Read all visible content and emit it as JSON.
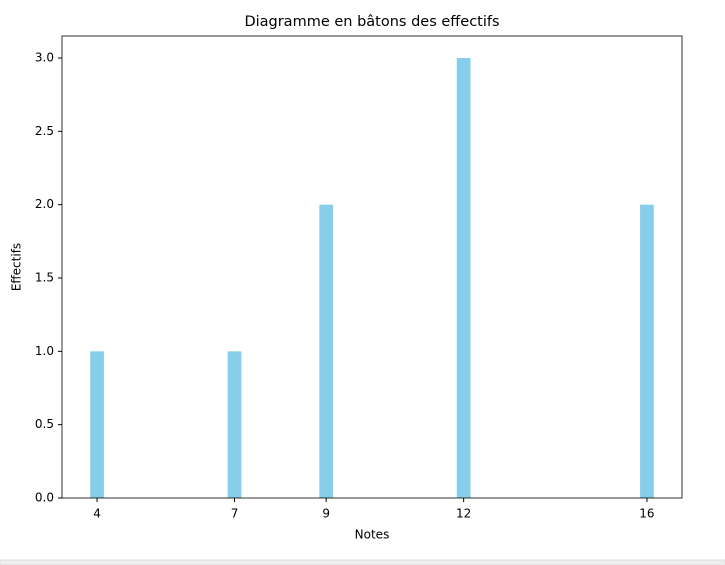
{
  "chart_data": {
    "type": "bar",
    "title": "Diagramme en bâtons des effectifs",
    "x_label": "Notes",
    "y_label": "Effectifs",
    "x": [
      4,
      7,
      9,
      12,
      16
    ],
    "values": [
      1,
      1,
      2,
      3,
      2
    ],
    "color": "#87ceeb",
    "xlim": [
      3.235,
      16.765
    ],
    "xticks": [
      4,
      7,
      9,
      12,
      16
    ],
    "ylim": [
      0,
      3.15
    ],
    "yticks": [
      {
        "value": 0,
        "label": "0.0"
      },
      {
        "value": 0.5,
        "label": "0.5"
      },
      {
        "value": 1,
        "label": "1.0"
      },
      {
        "value": 1.5,
        "label": "1.5"
      },
      {
        "value": 2,
        "label": "2.0"
      },
      {
        "value": 2.5,
        "label": "2.5"
      },
      {
        "value": 3,
        "label": "3.0"
      }
    ],
    "grid": false
  }
}
